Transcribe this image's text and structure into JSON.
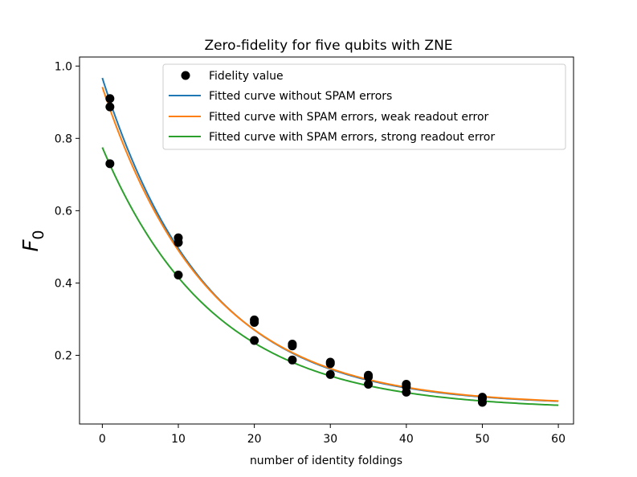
{
  "chart_data": {
    "type": "scatter",
    "title": "Zero-fidelity for five qubits with ZNE",
    "xlabel": "number of identity foldings",
    "ylabel": "F",
    "ylabel_subscript": "0",
    "xlim": [
      -3,
      62
    ],
    "ylim": [
      0.01,
      1.025
    ],
    "xticks": [
      0,
      10,
      20,
      30,
      40,
      50,
      60
    ],
    "yticks": [
      0.2,
      0.4,
      0.6,
      0.8,
      1.0
    ],
    "ytick_labels": [
      "0.2",
      "0.4",
      "0.6",
      "0.8",
      "1.0"
    ],
    "legend_position": "top-right",
    "points": {
      "name": "Fidelity value",
      "color": "#000000",
      "x": [
        1,
        1,
        1,
        10,
        10,
        10,
        20,
        20,
        20,
        25,
        25,
        25,
        30,
        30,
        30,
        35,
        35,
        35,
        40,
        40,
        40,
        50,
        50,
        50
      ],
      "y": [
        0.91,
        0.887,
        0.73,
        0.525,
        0.512,
        0.422,
        0.298,
        0.291,
        0.241,
        0.231,
        0.226,
        0.187,
        0.181,
        0.177,
        0.147,
        0.145,
        0.14,
        0.12,
        0.12,
        0.113,
        0.098,
        0.084,
        0.08,
        0.07
      ]
    },
    "series": [
      {
        "name": "Fitted curve without SPAM errors",
        "color": "#1f77b4",
        "a": 0.905,
        "k": 0.0735,
        "c": 0.062
      },
      {
        "name": "Fitted curve with SPAM errors, weak readout error",
        "color": "#ff7f0e",
        "a": 0.88,
        "k": 0.072,
        "c": 0.062
      },
      {
        "name": "Fitted curve with SPAM errors, strong readout error",
        "color": "#2ca02c",
        "a": 0.725,
        "k": 0.0685,
        "c": 0.05
      }
    ],
    "curve_x_range": [
      0,
      60
    ]
  }
}
